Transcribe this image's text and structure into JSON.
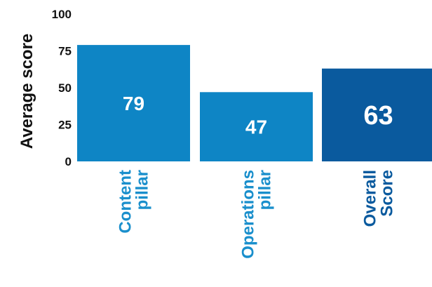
{
  "chart_data": {
    "type": "bar",
    "ylabel": "Average score",
    "ylim": [
      0,
      100
    ],
    "yticks": [
      "0",
      "25",
      "50",
      "75",
      "100"
    ],
    "categories": [
      [
        "Content",
        "pillar"
      ],
      [
        "Operations",
        "pillar"
      ],
      [
        "Overall",
        "Score"
      ]
    ],
    "values": [
      79,
      47,
      63
    ],
    "value_labels": [
      "79",
      "47",
      "63"
    ],
    "bar_colors": [
      "#0E85C5",
      "#0E85C5",
      "#0A5A9E"
    ],
    "label_colors": [
      "#1A8FCC",
      "#1A8FCC",
      "#0A5A9E"
    ],
    "value_label_color": "#ffffff",
    "axis_text_color": "#111111",
    "grid": false,
    "legend": false
  }
}
